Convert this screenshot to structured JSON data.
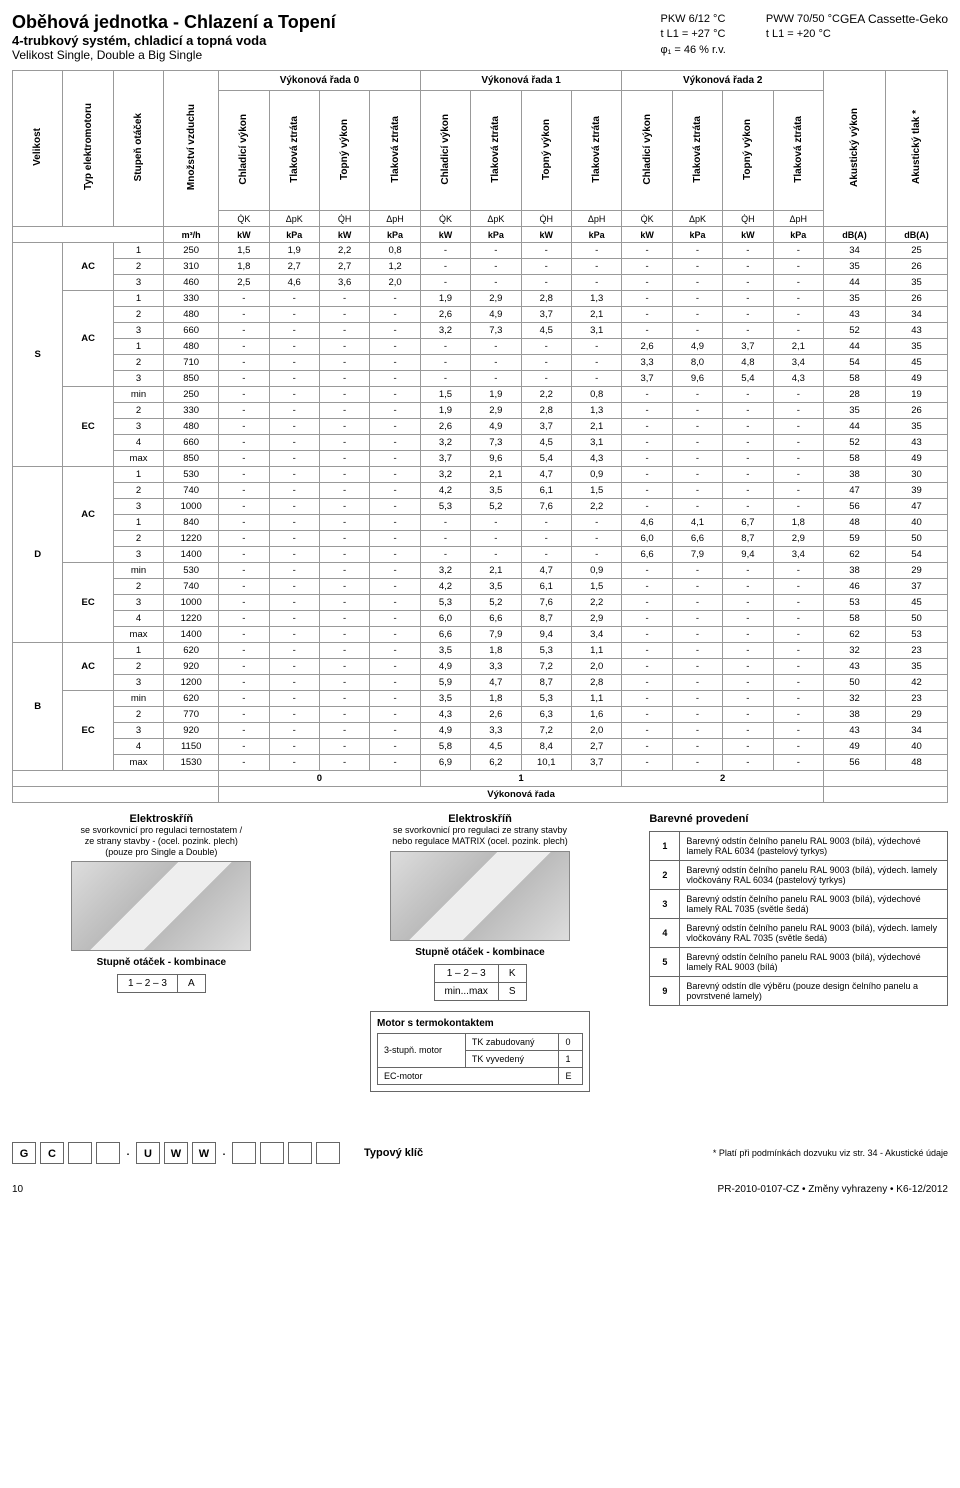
{
  "header": {
    "title_main": "Oběhová jednotka - Chlazení a Topení",
    "title_sub": "4-trubkový systém, chladicí a topná voda",
    "title_size": "Velikost Single, Double a Big Single",
    "mid1_l1": "PKW 6/12 °C",
    "mid1_l2": "t L1 = +27 °C",
    "mid1_l3": "φ₁ = 46 % r.v.",
    "mid2_l1": "PWW 70/50 °C",
    "mid2_l2": "t L1 = +20 °C",
    "brand": "GEA Cassette-Geko"
  },
  "col_labels": {
    "velikost": "Velikost",
    "typ_motor": "Typ elektromotoru",
    "stupen": "Stupeň otáček",
    "mnozstvi": "Množství vzduchu",
    "chladici": "Chladicí výkon",
    "tlak": "Tlaková ztráta",
    "topny": "Topný výkon",
    "akust_v": "Akustický výkon",
    "akust_t": "Akustický tlak *"
  },
  "group_headers": {
    "r0": "Výkonová řada 0",
    "r1": "Výkonová řada 1",
    "r2": "Výkonová řada 2"
  },
  "symbols": {
    "m3h": "m³/h",
    "qk": "Q̇K",
    "dpk": "ΔpK",
    "qh": "Q̇H",
    "dph": "ΔpH",
    "kw": "kW",
    "kpa": "kPa",
    "dba": "dB(A)"
  },
  "rows": [
    {
      "size": "S",
      "motor": "AC",
      "st": "1",
      "m": "250",
      "r0": [
        "1,5",
        "1,9",
        "2,2",
        "0,8"
      ],
      "r1": [
        "-",
        "-",
        "-",
        "-"
      ],
      "r2": [
        "-",
        "-",
        "-",
        "-"
      ],
      "ak": [
        "34",
        "25"
      ]
    },
    {
      "size": "",
      "motor": "",
      "st": "2",
      "m": "310",
      "r0": [
        "1,8",
        "2,7",
        "2,7",
        "1,2"
      ],
      "r1": [
        "-",
        "-",
        "-",
        "-"
      ],
      "r2": [
        "-",
        "-",
        "-",
        "-"
      ],
      "ak": [
        "35",
        "26"
      ]
    },
    {
      "size": "",
      "motor": "",
      "st": "3",
      "m": "460",
      "r0": [
        "2,5",
        "4,6",
        "3,6",
        "2,0"
      ],
      "r1": [
        "-",
        "-",
        "-",
        "-"
      ],
      "r2": [
        "-",
        "-",
        "-",
        "-"
      ],
      "ak": [
        "44",
        "35"
      ]
    },
    {
      "size": "",
      "motor": "AC",
      "st": "1",
      "m": "330",
      "r0": [
        "-",
        "-",
        "-",
        "-"
      ],
      "r1": [
        "1,9",
        "2,9",
        "2,8",
        "1,3"
      ],
      "r2": [
        "-",
        "-",
        "-",
        "-"
      ],
      "ak": [
        "35",
        "26"
      ]
    },
    {
      "size": "",
      "motor": "",
      "st": "2",
      "m": "480",
      "r0": [
        "-",
        "-",
        "-",
        "-"
      ],
      "r1": [
        "2,6",
        "4,9",
        "3,7",
        "2,1"
      ],
      "r2": [
        "-",
        "-",
        "-",
        "-"
      ],
      "ak": [
        "43",
        "34"
      ]
    },
    {
      "size": "",
      "motor": "",
      "st": "3",
      "m": "660",
      "r0": [
        "-",
        "-",
        "-",
        "-"
      ],
      "r1": [
        "3,2",
        "7,3",
        "4,5",
        "3,1"
      ],
      "r2": [
        "-",
        "-",
        "-",
        "-"
      ],
      "ak": [
        "52",
        "43"
      ]
    },
    {
      "size": "",
      "motor": "",
      "st": "1",
      "m": "480",
      "r0": [
        "-",
        "-",
        "-",
        "-"
      ],
      "r1": [
        "-",
        "-",
        "-",
        "-"
      ],
      "r2": [
        "2,6",
        "4,9",
        "3,7",
        "2,1"
      ],
      "ak": [
        "44",
        "35"
      ]
    },
    {
      "size": "",
      "motor": "",
      "st": "2",
      "m": "710",
      "r0": [
        "-",
        "-",
        "-",
        "-"
      ],
      "r1": [
        "-",
        "-",
        "-",
        "-"
      ],
      "r2": [
        "3,3",
        "8,0",
        "4,8",
        "3,4"
      ],
      "ak": [
        "54",
        "45"
      ]
    },
    {
      "size": "",
      "motor": "",
      "st": "3",
      "m": "850",
      "r0": [
        "-",
        "-",
        "-",
        "-"
      ],
      "r1": [
        "-",
        "-",
        "-",
        "-"
      ],
      "r2": [
        "3,7",
        "9,6",
        "5,4",
        "4,3"
      ],
      "ak": [
        "58",
        "49"
      ]
    },
    {
      "size": "",
      "motor": "EC",
      "st": "min",
      "m": "250",
      "r0": [
        "-",
        "-",
        "-",
        "-"
      ],
      "r1": [
        "1,5",
        "1,9",
        "2,2",
        "0,8"
      ],
      "r2": [
        "-",
        "-",
        "-",
        "-"
      ],
      "ak": [
        "28",
        "19"
      ]
    },
    {
      "size": "",
      "motor": "",
      "st": "2",
      "m": "330",
      "r0": [
        "-",
        "-",
        "-",
        "-"
      ],
      "r1": [
        "1,9",
        "2,9",
        "2,8",
        "1,3"
      ],
      "r2": [
        "-",
        "-",
        "-",
        "-"
      ],
      "ak": [
        "35",
        "26"
      ]
    },
    {
      "size": "",
      "motor": "",
      "st": "3",
      "m": "480",
      "r0": [
        "-",
        "-",
        "-",
        "-"
      ],
      "r1": [
        "2,6",
        "4,9",
        "3,7",
        "2,1"
      ],
      "r2": [
        "-",
        "-",
        "-",
        "-"
      ],
      "ak": [
        "44",
        "35"
      ]
    },
    {
      "size": "",
      "motor": "",
      "st": "4",
      "m": "660",
      "r0": [
        "-",
        "-",
        "-",
        "-"
      ],
      "r1": [
        "3,2",
        "7,3",
        "4,5",
        "3,1"
      ],
      "r2": [
        "-",
        "-",
        "-",
        "-"
      ],
      "ak": [
        "52",
        "43"
      ]
    },
    {
      "size": "",
      "motor": "",
      "st": "max",
      "m": "850",
      "r0": [
        "-",
        "-",
        "-",
        "-"
      ],
      "r1": [
        "3,7",
        "9,6",
        "5,4",
        "4,3"
      ],
      "r2": [
        "-",
        "-",
        "-",
        "-"
      ],
      "ak": [
        "58",
        "49"
      ]
    },
    {
      "size": "D",
      "motor": "AC",
      "st": "1",
      "m": "530",
      "r0": [
        "-",
        "-",
        "-",
        "-"
      ],
      "r1": [
        "3,2",
        "2,1",
        "4,7",
        "0,9"
      ],
      "r2": [
        "-",
        "-",
        "-",
        "-"
      ],
      "ak": [
        "38",
        "30"
      ]
    },
    {
      "size": "",
      "motor": "",
      "st": "2",
      "m": "740",
      "r0": [
        "-",
        "-",
        "-",
        "-"
      ],
      "r1": [
        "4,2",
        "3,5",
        "6,1",
        "1,5"
      ],
      "r2": [
        "-",
        "-",
        "-",
        "-"
      ],
      "ak": [
        "47",
        "39"
      ]
    },
    {
      "size": "",
      "motor": "",
      "st": "3",
      "m": "1000",
      "r0": [
        "-",
        "-",
        "-",
        "-"
      ],
      "r1": [
        "5,3",
        "5,2",
        "7,6",
        "2,2"
      ],
      "r2": [
        "-",
        "-",
        "-",
        "-"
      ],
      "ak": [
        "56",
        "47"
      ]
    },
    {
      "size": "",
      "motor": "",
      "st": "1",
      "m": "840",
      "r0": [
        "-",
        "-",
        "-",
        "-"
      ],
      "r1": [
        "-",
        "-",
        "-",
        "-"
      ],
      "r2": [
        "4,6",
        "4,1",
        "6,7",
        "1,8"
      ],
      "ak": [
        "48",
        "40"
      ]
    },
    {
      "size": "",
      "motor": "",
      "st": "2",
      "m": "1220",
      "r0": [
        "-",
        "-",
        "-",
        "-"
      ],
      "r1": [
        "-",
        "-",
        "-",
        "-"
      ],
      "r2": [
        "6,0",
        "6,6",
        "8,7",
        "2,9"
      ],
      "ak": [
        "59",
        "50"
      ]
    },
    {
      "size": "",
      "motor": "",
      "st": "3",
      "m": "1400",
      "r0": [
        "-",
        "-",
        "-",
        "-"
      ],
      "r1": [
        "-",
        "-",
        "-",
        "-"
      ],
      "r2": [
        "6,6",
        "7,9",
        "9,4",
        "3,4"
      ],
      "ak": [
        "62",
        "54"
      ]
    },
    {
      "size": "",
      "motor": "EC",
      "st": "min",
      "m": "530",
      "r0": [
        "-",
        "-",
        "-",
        "-"
      ],
      "r1": [
        "3,2",
        "2,1",
        "4,7",
        "0,9"
      ],
      "r2": [
        "-",
        "-",
        "-",
        "-"
      ],
      "ak": [
        "38",
        "29"
      ]
    },
    {
      "size": "",
      "motor": "",
      "st": "2",
      "m": "740",
      "r0": [
        "-",
        "-",
        "-",
        "-"
      ],
      "r1": [
        "4,2",
        "3,5",
        "6,1",
        "1,5"
      ],
      "r2": [
        "-",
        "-",
        "-",
        "-"
      ],
      "ak": [
        "46",
        "37"
      ]
    },
    {
      "size": "",
      "motor": "",
      "st": "3",
      "m": "1000",
      "r0": [
        "-",
        "-",
        "-",
        "-"
      ],
      "r1": [
        "5,3",
        "5,2",
        "7,6",
        "2,2"
      ],
      "r2": [
        "-",
        "-",
        "-",
        "-"
      ],
      "ak": [
        "53",
        "45"
      ]
    },
    {
      "size": "",
      "motor": "",
      "st": "4",
      "m": "1220",
      "r0": [
        "-",
        "-",
        "-",
        "-"
      ],
      "r1": [
        "6,0",
        "6,6",
        "8,7",
        "2,9"
      ],
      "r2": [
        "-",
        "-",
        "-",
        "-"
      ],
      "ak": [
        "58",
        "50"
      ]
    },
    {
      "size": "",
      "motor": "",
      "st": "max",
      "m": "1400",
      "r0": [
        "-",
        "-",
        "-",
        "-"
      ],
      "r1": [
        "6,6",
        "7,9",
        "9,4",
        "3,4"
      ],
      "r2": [
        "-",
        "-",
        "-",
        "-"
      ],
      "ak": [
        "62",
        "53"
      ]
    },
    {
      "size": "B",
      "motor": "AC",
      "st": "1",
      "m": "620",
      "r0": [
        "-",
        "-",
        "-",
        "-"
      ],
      "r1": [
        "3,5",
        "1,8",
        "5,3",
        "1,1"
      ],
      "r2": [
        "-",
        "-",
        "-",
        "-"
      ],
      "ak": [
        "32",
        "23"
      ]
    },
    {
      "size": "",
      "motor": "",
      "st": "2",
      "m": "920",
      "r0": [
        "-",
        "-",
        "-",
        "-"
      ],
      "r1": [
        "4,9",
        "3,3",
        "7,2",
        "2,0"
      ],
      "r2": [
        "-",
        "-",
        "-",
        "-"
      ],
      "ak": [
        "43",
        "35"
      ]
    },
    {
      "size": "",
      "motor": "",
      "st": "3",
      "m": "1200",
      "r0": [
        "-",
        "-",
        "-",
        "-"
      ],
      "r1": [
        "5,9",
        "4,7",
        "8,7",
        "2,8"
      ],
      "r2": [
        "-",
        "-",
        "-",
        "-"
      ],
      "ak": [
        "50",
        "42"
      ]
    },
    {
      "size": "",
      "motor": "EC",
      "st": "min",
      "m": "620",
      "r0": [
        "-",
        "-",
        "-",
        "-"
      ],
      "r1": [
        "3,5",
        "1,8",
        "5,3",
        "1,1"
      ],
      "r2": [
        "-",
        "-",
        "-",
        "-"
      ],
      "ak": [
        "32",
        "23"
      ]
    },
    {
      "size": "",
      "motor": "",
      "st": "2",
      "m": "770",
      "r0": [
        "-",
        "-",
        "-",
        "-"
      ],
      "r1": [
        "4,3",
        "2,6",
        "6,3",
        "1,6"
      ],
      "r2": [
        "-",
        "-",
        "-",
        "-"
      ],
      "ak": [
        "38",
        "29"
      ]
    },
    {
      "size": "",
      "motor": "",
      "st": "3",
      "m": "920",
      "r0": [
        "-",
        "-",
        "-",
        "-"
      ],
      "r1": [
        "4,9",
        "3,3",
        "7,2",
        "2,0"
      ],
      "r2": [
        "-",
        "-",
        "-",
        "-"
      ],
      "ak": [
        "43",
        "34"
      ]
    },
    {
      "size": "",
      "motor": "",
      "st": "4",
      "m": "1150",
      "r0": [
        "-",
        "-",
        "-",
        "-"
      ],
      "r1": [
        "5,8",
        "4,5",
        "8,4",
        "2,7"
      ],
      "r2": [
        "-",
        "-",
        "-",
        "-"
      ],
      "ak": [
        "49",
        "40"
      ]
    },
    {
      "size": "",
      "motor": "",
      "st": "max",
      "m": "1530",
      "r0": [
        "-",
        "-",
        "-",
        "-"
      ],
      "r1": [
        "6,9",
        "6,2",
        "10,1",
        "3,7"
      ],
      "r2": [
        "-",
        "-",
        "-",
        "-"
      ],
      "ak": [
        "56",
        "48"
      ]
    }
  ],
  "power_label": "Výkonová řada",
  "power_vals": [
    "0",
    "1",
    "2"
  ],
  "elektro": {
    "title": "Elektroskříň",
    "sub1a": "se svorkovnicí pro regulaci ternostatem /",
    "sub1b": "ze strany stavby - (ocel. pozink. plech)",
    "sub1c": "(pouze pro Single a Double)",
    "sub2a": "se svorkovnicí pro regulaci ze strany stavby",
    "sub2b": "nebo regulace MATRIX (ocel. pozink. plech)"
  },
  "stupne": {
    "title": "Stupně otáček - kombinace",
    "v1": "1 – 2 – 3",
    "A": "A",
    "K": "K",
    "minmax": "min...max",
    "S": "S"
  },
  "motor": {
    "title": "Motor s termokontaktem",
    "l1": "3-stupň. motor",
    "r1a": "TK zabudovaný",
    "r1av": "0",
    "r1b": "TK vyvedený",
    "r1bv": "1",
    "l2": "EC-motor",
    "r2v": "E"
  },
  "barva": {
    "header": "Barevné provedení",
    "items": [
      {
        "n": "1",
        "t": "Barevný odstín čelního panelu RAL 9003 (bílá), výdechové lamely RAL 6034 (pastelový tyrkys)"
      },
      {
        "n": "2",
        "t": "Barevný odstín čelního panelu RAL 9003 (bílá), výdech. lamely vločkovány RAL 6034 (pastelový tyrkys)"
      },
      {
        "n": "3",
        "t": "Barevný odstín čelního panelu RAL 9003 (bílá), výdechové lamely RAL 7035 (světle šedá)"
      },
      {
        "n": "4",
        "t": "Barevný odstín čelního panelu RAL 9003 (bílá), výdech. lamely vločkovány RAL 7035 (světle šedá)"
      },
      {
        "n": "5",
        "t": "Barevný odstín čelního panelu RAL 9003 (bílá), výdechové lamely RAL 9003 (bílá)"
      },
      {
        "n": "9",
        "t": "Barevný odstín dle výběru (pouze design čelního panelu a povrstvené lamely)"
      }
    ]
  },
  "key": {
    "boxes": [
      "G",
      "C",
      "",
      "",
      "U",
      "W",
      "W",
      "",
      "",
      "",
      ""
    ],
    "label": "Typový klíč",
    "note": "* Platí při podmínkách dozvuku viz str. 34  - Akustické údaje"
  },
  "footer": {
    "page": "10",
    "right": "PR-2010-0107-CZ • Změny vyhrazeny • K6-12/2012"
  }
}
